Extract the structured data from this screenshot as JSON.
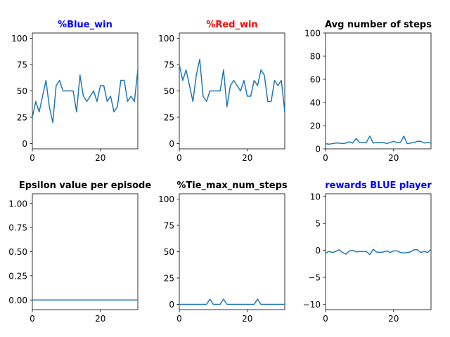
{
  "line_color": "#1f77b4",
  "chart_data": [
    {
      "type": "line",
      "title": "%Blue_win",
      "title_color": "#0000ff",
      "xlim": [
        0,
        31
      ],
      "ylim": [
        -5,
        105
      ],
      "xticks": [
        0,
        20
      ],
      "yticks": [
        0,
        25,
        50,
        75,
        100
      ],
      "ytick_labels": [
        "0",
        "25",
        "50",
        "75",
        "100"
      ],
      "x": [
        0,
        1,
        2,
        3,
        4,
        5,
        6,
        7,
        8,
        9,
        10,
        11,
        12,
        13,
        14,
        15,
        16,
        17,
        18,
        19,
        20,
        21,
        22,
        23,
        24,
        25,
        26,
        27,
        28,
        29,
        30,
        31
      ],
      "y": [
        25,
        40,
        30,
        45,
        60,
        35,
        20,
        55,
        60,
        50,
        50,
        50,
        50,
        30,
        65,
        45,
        40,
        45,
        50,
        40,
        55,
        55,
        40,
        45,
        30,
        35,
        60,
        60,
        40,
        45,
        40,
        70
      ]
    },
    {
      "type": "line",
      "title": "%Red_win",
      "title_color": "#ff0000",
      "xlim": [
        0,
        31
      ],
      "ylim": [
        -5,
        105
      ],
      "xticks": [
        0,
        20
      ],
      "yticks": [
        0,
        25,
        50,
        75,
        100
      ],
      "ytick_labels": [
        "0",
        "25",
        "50",
        "75",
        "100"
      ],
      "x": [
        0,
        1,
        2,
        3,
        4,
        5,
        6,
        7,
        8,
        9,
        10,
        11,
        12,
        13,
        14,
        15,
        16,
        17,
        18,
        19,
        20,
        21,
        22,
        23,
        24,
        25,
        26,
        27,
        28,
        29,
        30,
        31
      ],
      "y": [
        75,
        60,
        70,
        55,
        40,
        65,
        80,
        45,
        40,
        50,
        50,
        50,
        50,
        70,
        35,
        55,
        60,
        55,
        50,
        60,
        45,
        45,
        60,
        55,
        70,
        65,
        40,
        40,
        60,
        55,
        60,
        30
      ]
    },
    {
      "type": "line",
      "title": "Avg number of steps",
      "title_color": "#000000",
      "xlim": [
        0,
        31
      ],
      "ylim": [
        0,
        100
      ],
      "xticks": [
        0,
        20
      ],
      "yticks": [
        0,
        20,
        40,
        60,
        80,
        100
      ],
      "ytick_labels": [
        "0",
        "20",
        "40",
        "60",
        "80",
        "100"
      ],
      "x": [
        0,
        1,
        2,
        3,
        4,
        5,
        6,
        7,
        8,
        9,
        10,
        11,
        12,
        13,
        14,
        15,
        16,
        17,
        18,
        19,
        20,
        21,
        22,
        23,
        24,
        25,
        26,
        27,
        28,
        29,
        30,
        31
      ],
      "y": [
        4.5,
        4,
        4.5,
        5,
        5,
        4.5,
        5,
        6,
        5,
        9,
        5.5,
        5.5,
        5.5,
        11,
        5,
        5.5,
        5.5,
        5.5,
        4.5,
        5.5,
        6.5,
        5.5,
        5.5,
        11,
        4.5,
        5,
        5.5,
        6.5,
        6.5,
        5,
        5.5,
        5
      ]
    },
    {
      "type": "line",
      "title": "Epsilon value per episode",
      "title_color": "#000000",
      "xlim": [
        0,
        31
      ],
      "ylim": [
        -0.1,
        1.1
      ],
      "xticks": [
        0,
        20
      ],
      "yticks": [
        0,
        0.25,
        0.5,
        0.75,
        1.0
      ],
      "ytick_labels": [
        "0.00",
        "0.25",
        "0.50",
        "0.75",
        "1.00"
      ],
      "x": [
        0,
        1,
        2,
        3,
        4,
        5,
        6,
        7,
        8,
        9,
        10,
        11,
        12,
        13,
        14,
        15,
        16,
        17,
        18,
        19,
        20,
        21,
        22,
        23,
        24,
        25,
        26,
        27,
        28,
        29,
        30,
        31
      ],
      "y": [
        0,
        0,
        0,
        0,
        0,
        0,
        0,
        0,
        0,
        0,
        0,
        0,
        0,
        0,
        0,
        0,
        0,
        0,
        0,
        0,
        0,
        0,
        0,
        0,
        0,
        0,
        0,
        0,
        0,
        0,
        0,
        0
      ]
    },
    {
      "type": "line",
      "title": "%Tie_max_num_steps",
      "title_color": "#000000",
      "xlim": [
        0,
        31
      ],
      "ylim": [
        -5,
        105
      ],
      "xticks": [
        0,
        20
      ],
      "yticks": [
        0,
        25,
        50,
        75,
        100
      ],
      "ytick_labels": [
        "0",
        "25",
        "50",
        "75",
        "100"
      ],
      "x": [
        0,
        1,
        2,
        3,
        4,
        5,
        6,
        7,
        8,
        9,
        10,
        11,
        12,
        13,
        14,
        15,
        16,
        17,
        18,
        19,
        20,
        21,
        22,
        23,
        24,
        25,
        26,
        27,
        28,
        29,
        30,
        31
      ],
      "y": [
        0,
        0,
        0,
        0,
        0,
        0,
        0,
        0,
        0,
        5,
        0,
        0,
        0,
        5,
        0,
        0,
        0,
        0,
        0,
        0,
        0,
        0,
        0,
        5,
        0,
        0,
        0,
        0,
        0,
        0,
        0,
        0
      ]
    },
    {
      "type": "line",
      "title": "rewards BLUE player",
      "title_color": "#0000ff",
      "xlim": [
        0,
        31
      ],
      "ylim": [
        -11,
        10.5
      ],
      "xticks": [
        0,
        20
      ],
      "yticks": [
        -10,
        -5,
        0,
        5,
        10
      ],
      "ytick_labels": [
        "−10",
        "−5",
        "0",
        "5",
        "10"
      ],
      "x": [
        0,
        1,
        2,
        3,
        4,
        5,
        6,
        7,
        8,
        9,
        10,
        11,
        12,
        13,
        14,
        15,
        16,
        17,
        18,
        19,
        20,
        21,
        22,
        23,
        24,
        25,
        26,
        27,
        28,
        29,
        30,
        31
      ],
      "y": [
        -0.5,
        -0.2,
        -0.4,
        -0.2,
        0.1,
        -0.4,
        -0.7,
        -0.1,
        0.0,
        -0.3,
        -0.2,
        -0.2,
        -0.2,
        -0.8,
        0.2,
        -0.3,
        -0.4,
        -0.3,
        -0.1,
        -0.4,
        -0.1,
        -0.1,
        -0.4,
        -0.5,
        -0.4,
        -0.3,
        0.1,
        0.1,
        -0.4,
        -0.2,
        -0.4,
        0.2
      ]
    }
  ]
}
